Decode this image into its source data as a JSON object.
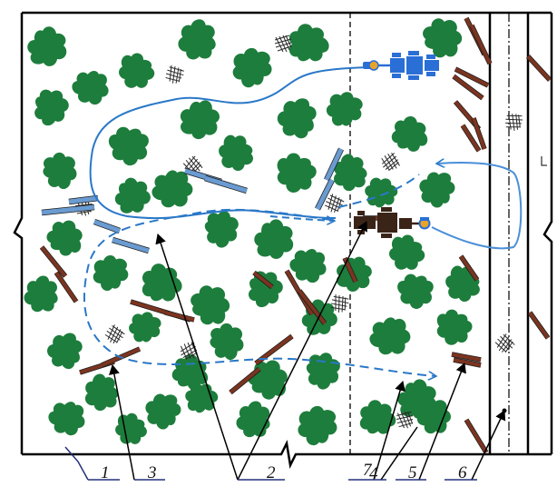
{
  "labels": {
    "l1": "1",
    "l3": "3",
    "l2": "2",
    "l7": "7",
    "l4": "4",
    "l5": "5",
    "l6": "6"
  },
  "colors": {
    "tree": "#1d7d3c",
    "blue_log": "#6a9bd1",
    "brown_log": "#7b3420",
    "route": "#2a78c8",
    "machine": "#2a6fd6",
    "forwarder": "#3a2418",
    "frame": "#000000",
    "label_line": "#24307a"
  },
  "icons": {
    "tree": "tree-crown-icon",
    "blue_log": "blue-log-icon",
    "brown_log": "brown-log-icon",
    "slash": "slash-pile-icon",
    "machine": "harvester-icon",
    "forwarder": "forwarder-icon"
  }
}
